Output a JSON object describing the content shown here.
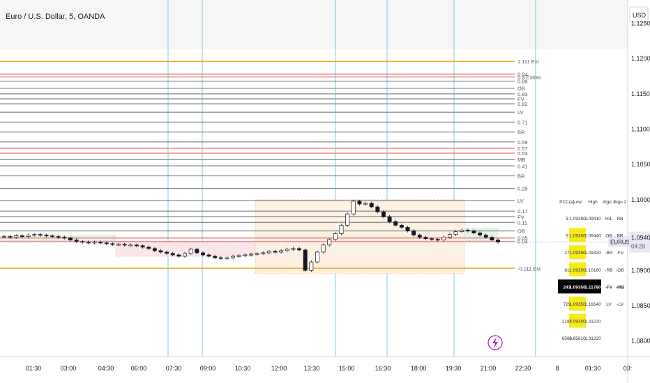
{
  "header": {
    "title": "Euro / U.S. Dollar, 5, OANDA"
  },
  "chart_data": {
    "type": "candlestick",
    "currency": "USD",
    "ylim": [
      1.0778,
      1.1283
    ],
    "y_ticks": [
      1.125,
      1.12,
      1.115,
      1.11,
      1.105,
      1.1,
      1.095,
      1.09,
      1.085,
      1.08
    ],
    "y_tick_labels": [
      "1.12500",
      "1.12000",
      "1.11500",
      "1.11000",
      "1.10500",
      "1.10000",
      "1.09500",
      "1.09000",
      "1.08500",
      "1.08000"
    ],
    "time_labels": [
      "01:30",
      "03:00",
      "04:30",
      "06:00",
      "07:30",
      "09:00",
      "10:30",
      "12:00",
      "13:30",
      "15:00",
      "16:30",
      "18:00",
      "19:30",
      "21:00",
      "22:30",
      "8",
      "01:30",
      "03:"
    ],
    "current_price": {
      "symbol": "EURUSD",
      "price": "1.09401",
      "countdown": "04:29",
      "value": 1.09401
    },
    "levels": [
      {
        "label": "1.111 Ext",
        "value": 1.1196,
        "color": "#f5a623"
      },
      {
        "label": "0.94",
        "value": 1.1178,
        "color": "#f28b8b"
      },
      {
        "label": "0.9 Extras",
        "value": 1.1174,
        "color": "#f28b8b"
      },
      {
        "label": "0.89",
        "value": 1.1168,
        "color": "#888888"
      },
      {
        "label": "OB",
        "value": 1.1158,
        "color": "#888888"
      },
      {
        "label": "0.83",
        "value": 1.115,
        "color": "#888888"
      },
      {
        "label": "FV",
        "value": 1.1143,
        "color": "#888888"
      },
      {
        "label": "0.82",
        "value": 1.1136,
        "color": "#888888"
      },
      {
        "label": "LV",
        "value": 1.1124,
        "color": "#888888"
      },
      {
        "label": "0.71",
        "value": 1.111,
        "color": "#888888"
      },
      {
        "label": "BR",
        "value": 1.1096,
        "color": "#888888"
      },
      {
        "label": "0.59",
        "value": 1.1082,
        "color": "#888888"
      },
      {
        "label": "0.57",
        "value": 1.1073,
        "color": "#f28b8b"
      },
      {
        "label": "0.53",
        "value": 1.1066,
        "color": "#f28b8b"
      },
      {
        "label": "MB",
        "value": 1.1057,
        "color": "#888888"
      },
      {
        "label": "0.41",
        "value": 1.1048,
        "color": "#888888"
      },
      {
        "label": "BR",
        "value": 1.1034,
        "color": "#888888"
      },
      {
        "label": "0.29",
        "value": 1.1016,
        "color": "#888888"
      },
      {
        "label": "LV",
        "value": 1.0999,
        "color": "#888888"
      },
      {
        "label": "0.17",
        "value": 1.0984,
        "color": "#888888"
      },
      {
        "label": "FV",
        "value": 1.0976,
        "color": "#888888"
      },
      {
        "label": "0.11",
        "value": 1.0968,
        "color": "#888888"
      },
      {
        "label": "OB",
        "value": 1.0956,
        "color": "#888888"
      },
      {
        "label": "0.05",
        "value": 1.0946,
        "color": "#f28b8b"
      },
      {
        "label": "0.04",
        "value": 1.0941,
        "color": "#f28b8b"
      },
      {
        "label": "-0.111 Ext",
        "value": 1.0903,
        "color": "#f5a623"
      }
    ],
    "table": {
      "columns": [
        "PCC(a)",
        "Low",
        "High",
        "Algo 1",
        "Algo 2"
      ],
      "rows": [
        {
          "pcc": "3",
          "low": "1.09380",
          "high": "1.09410",
          "a1": "H/L",
          "a2": "RB",
          "style": "normal",
          "hl": false
        },
        {
          "pcc": "9",
          "low": "1.09350",
          "high": "1.09440",
          "a1": "OB",
          "a2": "BR",
          "style": "normal",
          "hl": true
        },
        {
          "pcc": "27",
          "low": "1.09350",
          "high": "1.09420",
          "a1": "-BR",
          "a2": "-FV",
          "style": "normal",
          "hl": true
        },
        {
          "pcc": "81",
          "low": "1.09350",
          "high": "1.10160",
          "a1": "-RB",
          "a2": "-OB",
          "style": "normal",
          "hl": true
        },
        {
          "pcc": "243",
          "low": "1.09350",
          "high": "1.11780",
          "a1": "-FV",
          "a2": "-MB",
          "style": "dark",
          "hl": false
        },
        {
          "pcc": "729",
          "low": "1.09350",
          "high": "1.16640",
          "a1": "LV",
          "a2": "-LV",
          "style": "normal",
          "hl": true
        },
        {
          "pcc": "2187",
          "low": "1.09350",
          "high": "1.31220",
          "a1": "",
          "a2": "",
          "style": "normal",
          "hl": true
        },
        {
          "pcc": "6561",
          "low": "0.65610",
          "high": "1.31220",
          "a1": "",
          "a2": "",
          "style": "normal",
          "hl": false
        }
      ]
    },
    "series": [
      1.0948,
      1.0947,
      1.0949,
      1.0948,
      1.095,
      1.0951,
      1.095,
      1.0949,
      1.0948,
      1.0947,
      1.0946,
      1.0943,
      1.0941,
      1.094,
      1.0939,
      1.094,
      1.0939,
      1.0938,
      1.0937,
      1.0937,
      1.0936,
      1.0936,
      1.0935,
      1.0933,
      1.0931,
      1.0928,
      1.0926,
      1.0924,
      1.0922,
      1.092,
      1.0924,
      1.093,
      1.0925,
      1.0922,
      1.092,
      1.0918,
      1.0917,
      1.0918,
      1.092,
      1.0921,
      1.0922,
      1.0923,
      1.0924,
      1.0925,
      1.0927,
      1.0926,
      1.0928,
      1.093,
      1.0931,
      1.0929,
      1.09,
      1.0912,
      1.0926,
      1.0936,
      1.0944,
      1.0952,
      1.0964,
      1.098,
      1.0998,
      1.0994,
      1.0995,
      1.099,
      1.0983,
      1.0976,
      1.0969,
      1.0964,
      1.0961,
      1.0956,
      1.095,
      1.0947,
      1.0945,
      1.0944,
      1.0943,
      1.0947,
      1.0951,
      1.0955,
      1.0957,
      1.0956,
      1.0953,
      1.095,
      1.0947,
      1.0943,
      1.094
    ]
  },
  "badge": {
    "icon": "lightning-icon"
  }
}
